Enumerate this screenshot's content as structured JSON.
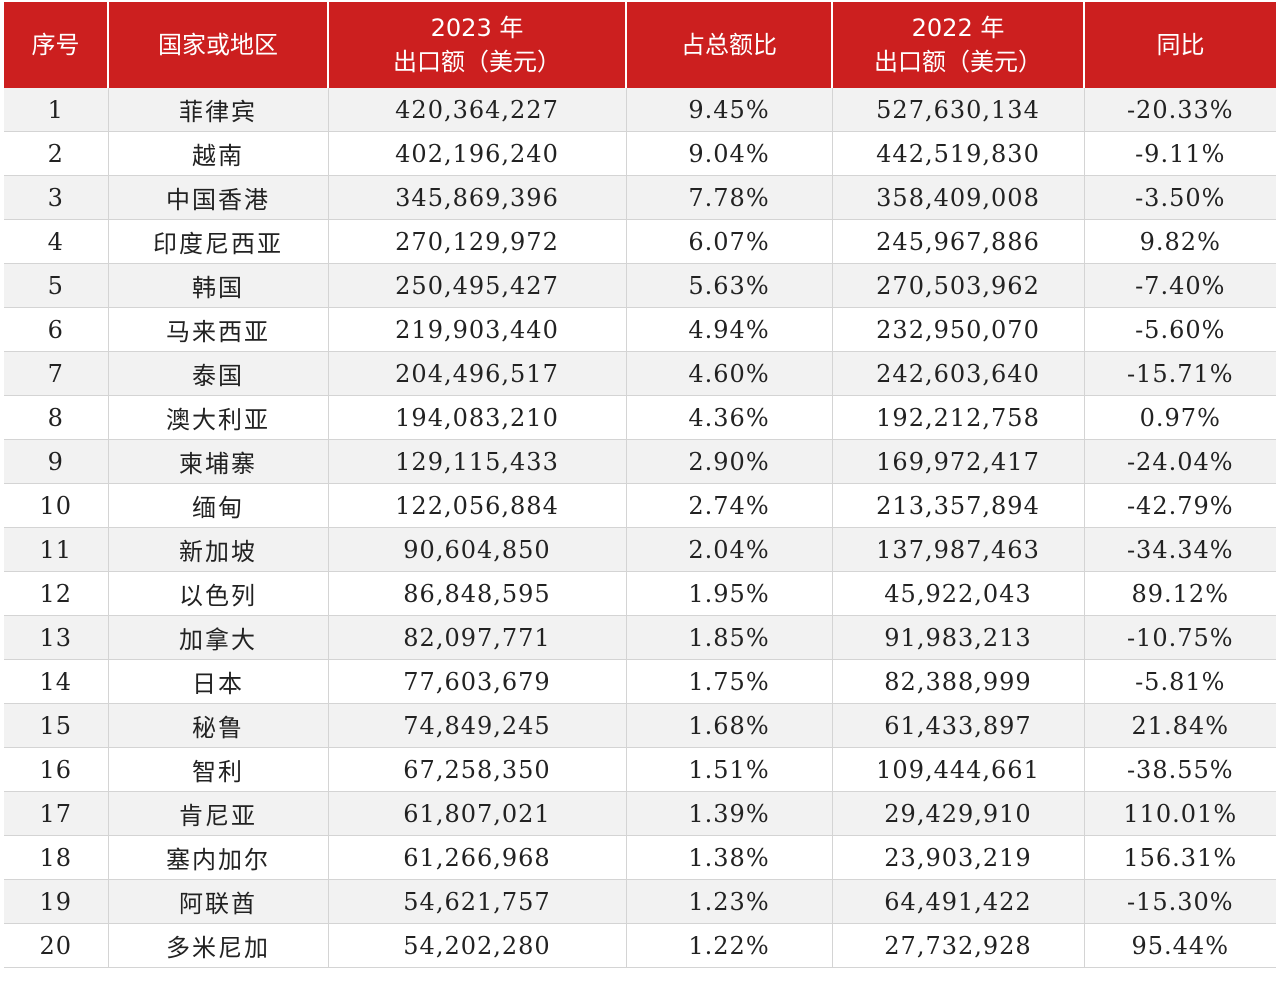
{
  "table": {
    "headers": [
      {
        "line1": "序号",
        "line2": ""
      },
      {
        "line1": "国家或地区",
        "line2": ""
      },
      {
        "line1": "2023 年",
        "line2": "出口额（美元）"
      },
      {
        "line1": "占总额比",
        "line2": ""
      },
      {
        "line1": "2022 年",
        "line2": "出口额（美元）"
      },
      {
        "line1": "同比",
        "line2": ""
      }
    ],
    "rows": [
      [
        "1",
        "菲律宾",
        "420,364,227",
        "9.45%",
        "527,630,134",
        "-20.33%"
      ],
      [
        "2",
        "越南",
        "402,196,240",
        "9.04%",
        "442,519,830",
        "-9.11%"
      ],
      [
        "3",
        "中国香港",
        "345,869,396",
        "7.78%",
        "358,409,008",
        "-3.50%"
      ],
      [
        "4",
        "印度尼西亚",
        "270,129,972",
        "6.07%",
        "245,967,886",
        "9.82%"
      ],
      [
        "5",
        "韩国",
        "250,495,427",
        "5.63%",
        "270,503,962",
        "-7.40%"
      ],
      [
        "6",
        "马来西亚",
        "219,903,440",
        "4.94%",
        "232,950,070",
        "-5.60%"
      ],
      [
        "7",
        "泰国",
        "204,496,517",
        "4.60%",
        "242,603,640",
        "-15.71%"
      ],
      [
        "8",
        "澳大利亚",
        "194,083,210",
        "4.36%",
        "192,212,758",
        "0.97%"
      ],
      [
        "9",
        "柬埔寨",
        "129,115,433",
        "2.90%",
        "169,972,417",
        "-24.04%"
      ],
      [
        "10",
        "缅甸",
        "122,056,884",
        "2.74%",
        "213,357,894",
        "-42.79%"
      ],
      [
        "11",
        "新加坡",
        "90,604,850",
        "2.04%",
        "137,987,463",
        "-34.34%"
      ],
      [
        "12",
        "以色列",
        "86,848,595",
        "1.95%",
        "45,922,043",
        "89.12%"
      ],
      [
        "13",
        "加拿大",
        "82,097,771",
        "1.85%",
        "91,983,213",
        "-10.75%"
      ],
      [
        "14",
        "日本",
        "77,603,679",
        "1.75%",
        "82,388,999",
        "-5.81%"
      ],
      [
        "15",
        "秘鲁",
        "74,849,245",
        "1.68%",
        "61,433,897",
        "21.84%"
      ],
      [
        "16",
        "智利",
        "67,258,350",
        "1.51%",
        "109,444,661",
        "-38.55%"
      ],
      [
        "17",
        "肯尼亚",
        "61,807,021",
        "1.39%",
        "29,429,910",
        "110.01%"
      ],
      [
        "18",
        "塞内加尔",
        "61,266,968",
        "1.38%",
        "23,903,219",
        "156.31%"
      ],
      [
        "19",
        "阿联酋",
        "54,621,757",
        "1.23%",
        "64,491,422",
        "-15.30%"
      ],
      [
        "20",
        "多米尼加",
        "54,202,280",
        "1.22%",
        "27,732,928",
        "95.44%"
      ]
    ]
  },
  "colors": {
    "header_bg": "#cc1f1f",
    "header_text": "#ffffff",
    "row_stripe": "#f2f2f2",
    "row_plain": "#ffffff"
  }
}
